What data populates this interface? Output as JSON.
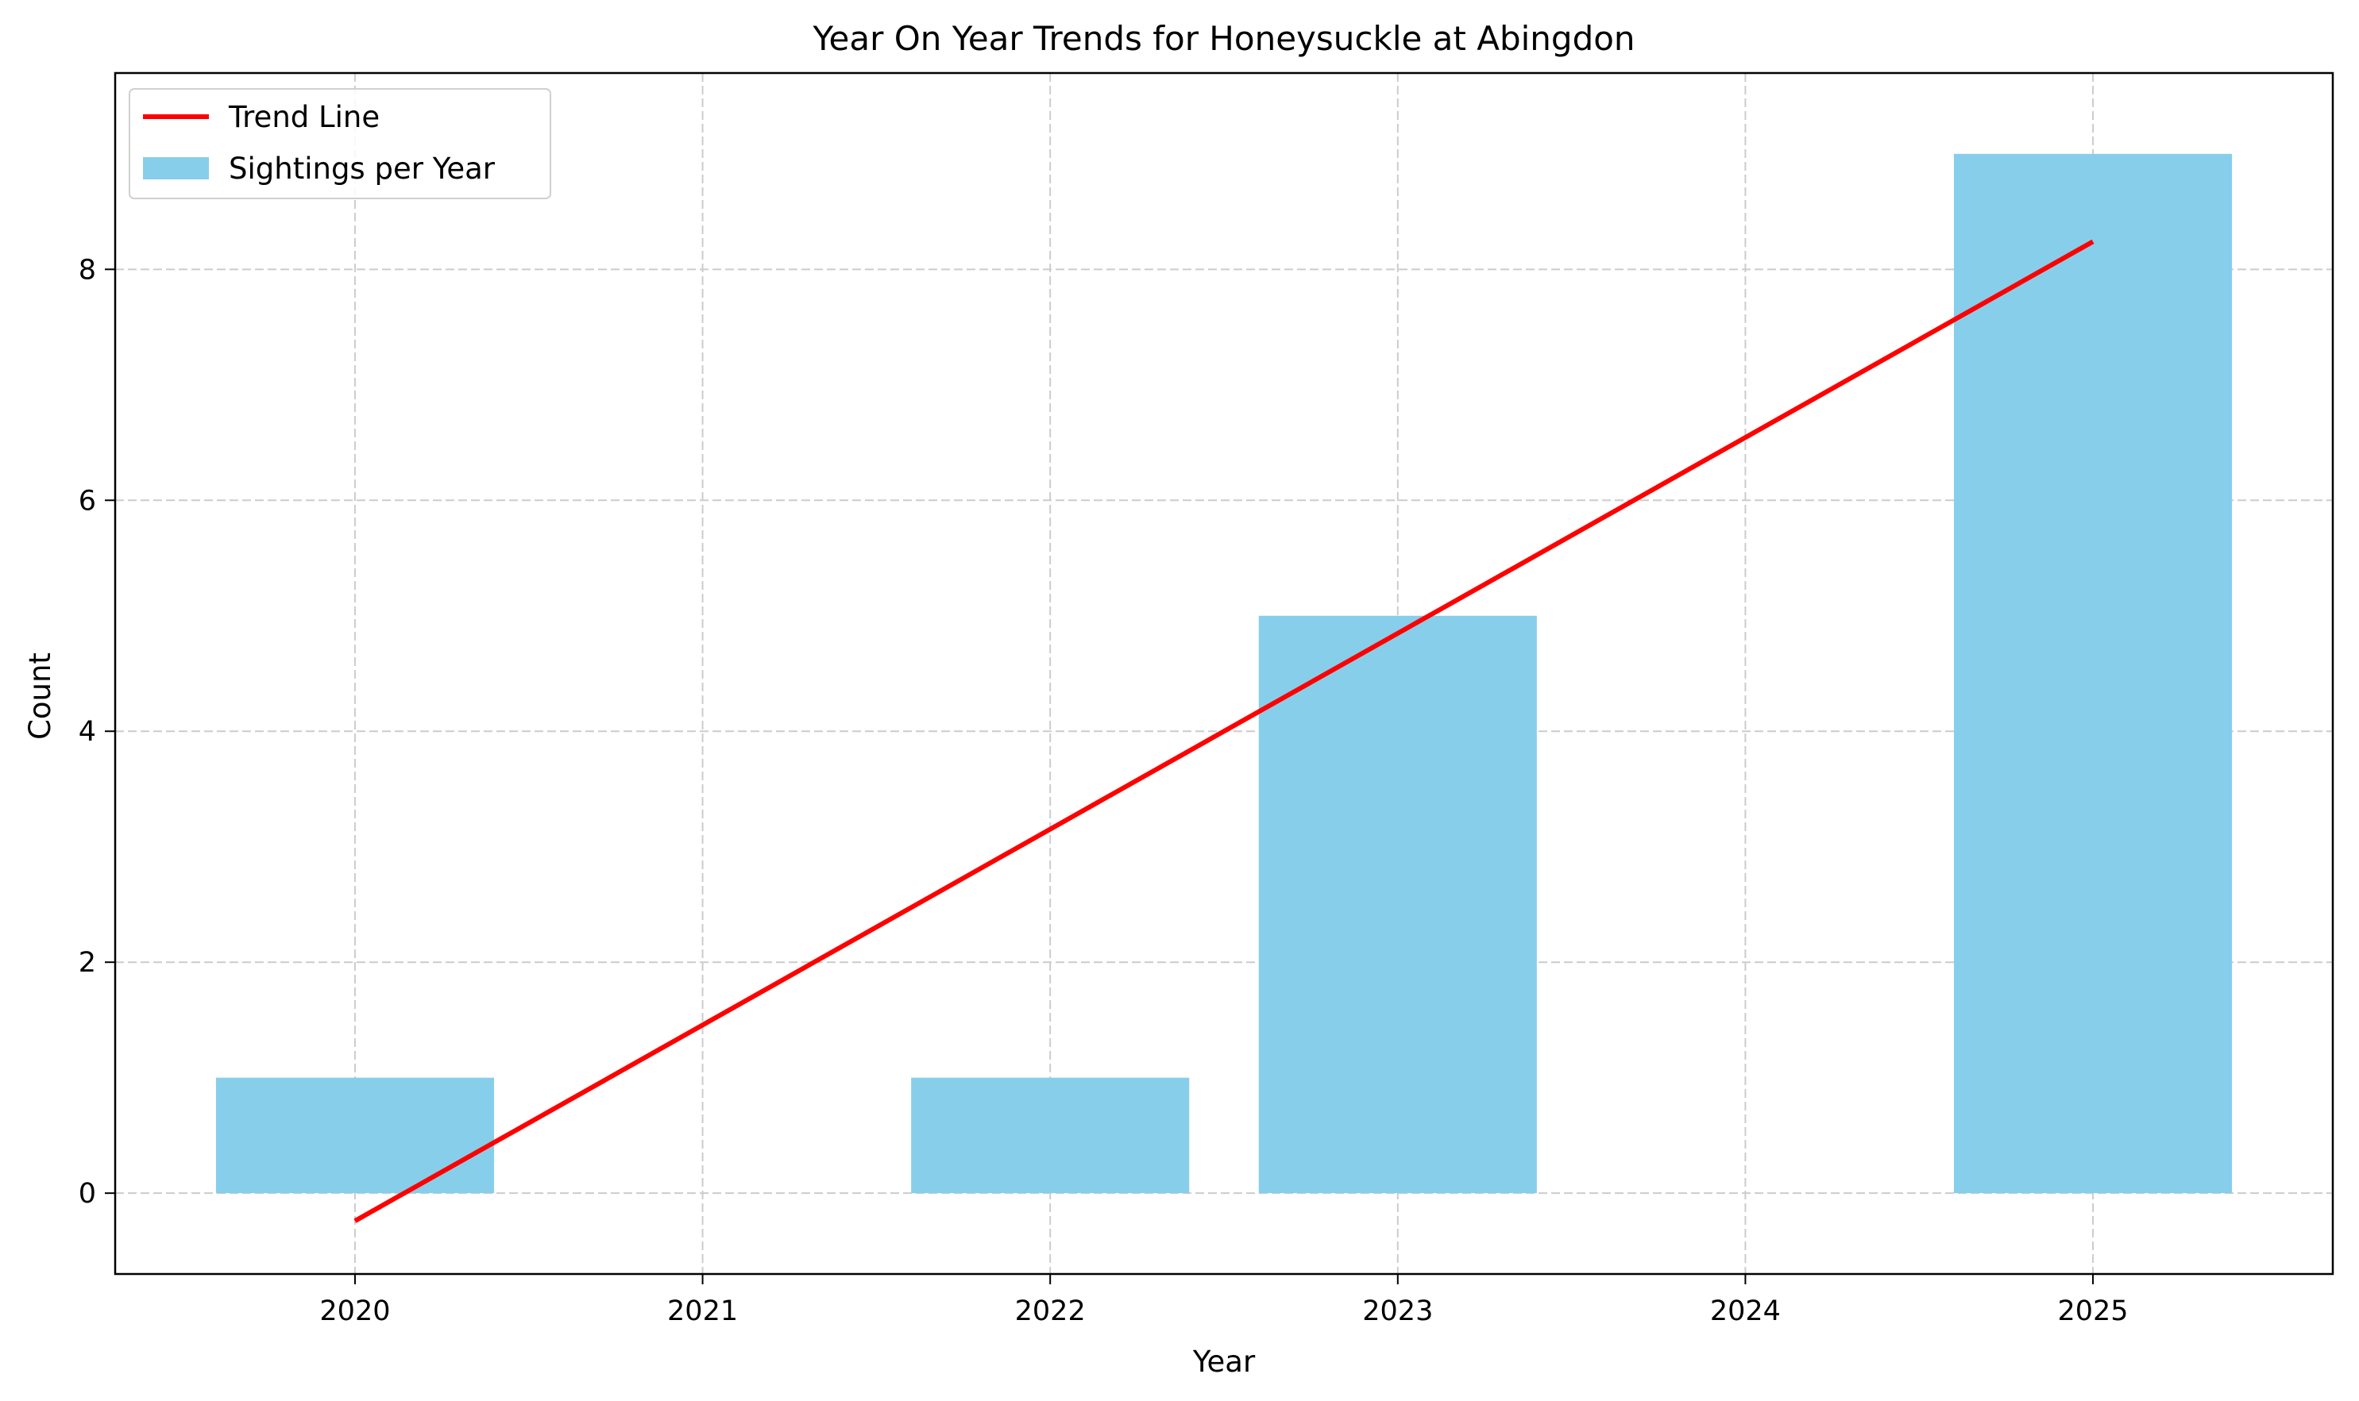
{
  "chart_data": {
    "type": "bar",
    "title": "Year On Year Trends for Honeysuckle at Abingdon",
    "xlabel": "Year",
    "ylabel": "Count",
    "categories": [
      "2020",
      "2021",
      "2022",
      "2023",
      "2024",
      "2025"
    ],
    "x_values": [
      2020,
      2021,
      2022,
      2023,
      2024,
      2025
    ],
    "series": [
      {
        "name": "Sightings per Year",
        "type": "bar",
        "color": "#87ceeb",
        "x": [
          2020,
          2022,
          2023,
          2025
        ],
        "values": [
          1,
          1,
          5,
          9
        ]
      },
      {
        "name": "Trend Line",
        "type": "line",
        "color": "#ff0000",
        "x": [
          2020,
          2025
        ],
        "values": [
          -0.24,
          8.24
        ]
      }
    ],
    "yticks": [
      0,
      2,
      4,
      6,
      8
    ],
    "ylim": [
      -0.7,
      9.7
    ],
    "xlim": [
      2019.31,
      2025.69
    ],
    "grid": true,
    "legend": {
      "position": "top-left",
      "entries": [
        "Trend Line",
        "Sightings per Year"
      ]
    }
  }
}
